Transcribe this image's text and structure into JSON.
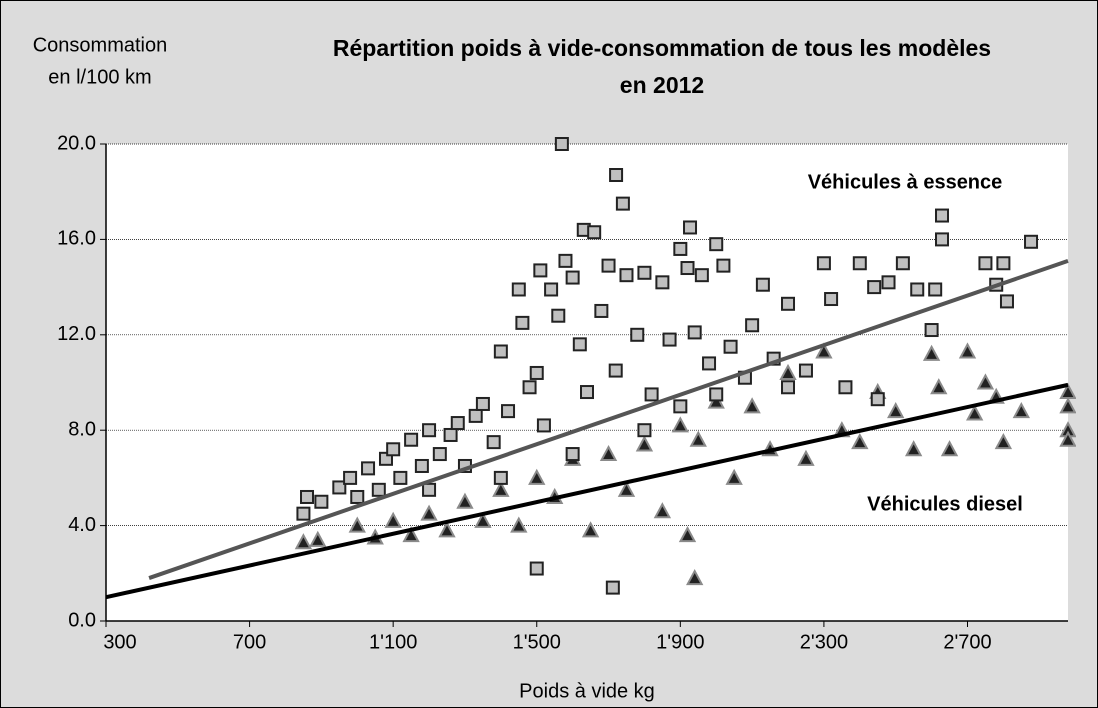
{
  "chart_data": {
    "type": "scatter",
    "title": [
      "Répartition poids à vide-consommation de tous les modèles",
      "en 2012"
    ],
    "ylabel": [
      "Consommation",
      "en l/100 km"
    ],
    "xlabel": "Poids à vide kg",
    "xlim": [
      300,
      2980
    ],
    "xticks": [
      {
        "value": 300,
        "label": "300"
      },
      {
        "value": 700,
        "label": "700"
      },
      {
        "value": 1100,
        "label": "1'100"
      },
      {
        "value": 1500,
        "label": "1'500"
      },
      {
        "value": 1900,
        "label": "1'900"
      },
      {
        "value": 2300,
        "label": "2'300"
      },
      {
        "value": 2700,
        "label": "2'700"
      }
    ],
    "ylim": [
      0,
      20
    ],
    "yticks": [
      {
        "value": 0,
        "label": "0.0"
      },
      {
        "value": 4,
        "label": "4.0"
      },
      {
        "value": 8,
        "label": "8.0"
      },
      {
        "value": 12,
        "label": "12.0"
      },
      {
        "value": 16,
        "label": "16.0"
      },
      {
        "value": 20,
        "label": "20.0"
      }
    ],
    "grid": true,
    "series": [
      {
        "name": "Véhicules à essence",
        "marker": "square",
        "color": "#c0c0c0",
        "edge": "#222222",
        "x": [
          1570,
          1721,
          1740,
          2629,
          2629,
          2877,
          1631,
          1927,
          1500,
          1712,
          850,
          860,
          900,
          950,
          980,
          1000,
          1030,
          1060,
          1080,
          1100,
          1120,
          1150,
          1180,
          1200,
          1230,
          1260,
          1280,
          1300,
          1330,
          1350,
          1380,
          1400,
          1420,
          1450,
          1460,
          1480,
          1500,
          1510,
          1520,
          1540,
          1560,
          1580,
          1600,
          1620,
          1640,
          1660,
          1680,
          1700,
          1720,
          1750,
          1780,
          1800,
          1820,
          1850,
          1870,
          1900,
          1920,
          1940,
          1960,
          1980,
          2000,
          2020,
          2040,
          2080,
          2100,
          2130,
          2160,
          2200,
          2250,
          2300,
          2320,
          2360,
          2400,
          2440,
          2480,
          2520,
          2560,
          2600,
          2610,
          2750,
          2780,
          2800,
          2810,
          1200,
          1400,
          1600,
          1800,
          1900,
          2000,
          2200,
          2450
        ],
        "values": [
          20.0,
          18.7,
          17.5,
          17.0,
          16.0,
          15.9,
          16.4,
          16.5,
          2.2,
          1.4,
          4.5,
          5.2,
          5.0,
          5.6,
          6.0,
          5.2,
          6.4,
          5.5,
          6.8,
          7.2,
          6.0,
          7.6,
          6.5,
          8.0,
          7.0,
          7.8,
          8.3,
          6.5,
          8.6,
          9.1,
          7.5,
          11.3,
          8.8,
          13.9,
          12.5,
          9.8,
          10.4,
          14.7,
          8.2,
          13.9,
          12.8,
          15.1,
          14.4,
          11.6,
          9.6,
          16.3,
          13.0,
          14.9,
          10.5,
          14.5,
          12.0,
          14.6,
          9.5,
          14.2,
          11.8,
          15.6,
          14.8,
          12.1,
          14.5,
          10.8,
          15.8,
          14.9,
          11.5,
          10.2,
          12.4,
          14.1,
          11.0,
          13.3,
          10.5,
          15.0,
          13.5,
          9.8,
          15.0,
          14.0,
          14.2,
          15.0,
          13.9,
          12.2,
          13.9,
          15.0,
          14.1,
          15.0,
          13.4,
          5.5,
          6.0,
          7.0,
          8.0,
          9.0,
          9.5,
          9.8,
          9.3
        ],
        "trend": {
          "color": "#555555",
          "x": [
            420,
            2980
          ],
          "values": [
            1.8,
            15.1
          ]
        }
      },
      {
        "name": "Véhicules diesel",
        "marker": "triangle",
        "color": "#222222",
        "edge": "#8a8a8a",
        "x": [
          850,
          890,
          1000,
          1050,
          1100,
          1150,
          1200,
          1250,
          1300,
          1350,
          1400,
          1450,
          1500,
          1550,
          1600,
          1650,
          1700,
          1750,
          1800,
          1850,
          1900,
          1920,
          1940,
          1950,
          2000,
          2050,
          2100,
          2150,
          2200,
          2250,
          2300,
          2350,
          2400,
          2450,
          2500,
          2550,
          2600,
          2620,
          2650,
          2700,
          2720,
          2750,
          2780,
          2800,
          2850,
          2980,
          2980,
          2980,
          2980
        ],
        "values": [
          3.3,
          3.4,
          4.0,
          3.5,
          4.2,
          3.6,
          4.5,
          3.8,
          5.0,
          4.2,
          5.5,
          4.0,
          6.0,
          5.2,
          6.8,
          3.8,
          7.0,
          5.5,
          7.4,
          4.6,
          8.2,
          3.6,
          1.8,
          7.6,
          9.2,
          6.0,
          9.0,
          7.2,
          10.4,
          6.8,
          11.3,
          8.0,
          7.5,
          9.6,
          8.8,
          7.2,
          11.2,
          9.8,
          7.2,
          11.3,
          8.7,
          10.0,
          9.4,
          7.5,
          8.8,
          9.6,
          8.0,
          7.6,
          9.0
        ],
        "trend": {
          "color": "#000000",
          "x": [
            300,
            2980
          ],
          "values": [
            1.0,
            9.9
          ]
        }
      }
    ]
  }
}
